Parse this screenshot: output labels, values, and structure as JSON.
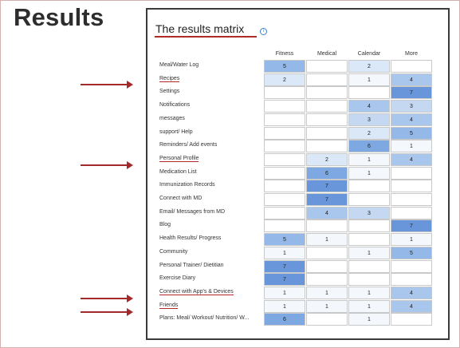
{
  "slide_title": "Results",
  "matrix": {
    "title": "The results matrix",
    "columns": [
      "Fitness",
      "Medical",
      "Calendar",
      "More"
    ],
    "rows": [
      {
        "label": "Meal/Water Log",
        "values": [
          "5",
          "",
          "2",
          ""
        ]
      },
      {
        "label": "Recipes",
        "values": [
          "2",
          "",
          "1",
          "4"
        ]
      },
      {
        "label": "Settings",
        "values": [
          "",
          "",
          "",
          "7"
        ]
      },
      {
        "label": "Notifications",
        "values": [
          "",
          "",
          "4",
          "3"
        ]
      },
      {
        "label": "messages",
        "values": [
          "",
          "",
          "3",
          "4"
        ]
      },
      {
        "label": "support/ Help",
        "values": [
          "",
          "",
          "2",
          "5"
        ]
      },
      {
        "label": "Reminders/ Add events",
        "values": [
          "",
          "",
          "6",
          "1"
        ]
      },
      {
        "label": "Personal Profile",
        "values": [
          "",
          "2",
          "1",
          "4"
        ]
      },
      {
        "label": "Medication List",
        "values": [
          "",
          "6",
          "1",
          ""
        ]
      },
      {
        "label": "Immunization Records",
        "values": [
          "",
          "7",
          "",
          ""
        ]
      },
      {
        "label": "Connect with MD",
        "values": [
          "",
          "7",
          "",
          ""
        ]
      },
      {
        "label": "Email/ Messages from MD",
        "values": [
          "",
          "4",
          "3",
          ""
        ]
      },
      {
        "label": "Blog",
        "values": [
          "",
          "",
          "",
          "7"
        ]
      },
      {
        "label": "Health Results/ Progress",
        "values": [
          "5",
          "1",
          "",
          "1"
        ]
      },
      {
        "label": "Community",
        "values": [
          "1",
          "",
          "1",
          "5"
        ]
      },
      {
        "label": "Personal Trainer/ Dietitian",
        "values": [
          "7",
          "",
          "",
          ""
        ]
      },
      {
        "label": "Exercise Diary",
        "values": [
          "7",
          "",
          "",
          ""
        ]
      },
      {
        "label": "Connect with App's & Devices",
        "values": [
          "1",
          "1",
          "1",
          "4"
        ]
      },
      {
        "label": "Friends",
        "values": [
          "1",
          "1",
          "1",
          "4"
        ]
      },
      {
        "label": "Plans: Meal/ Workout/ Nutrition/ W...",
        "values": [
          "6",
          "",
          "1",
          ""
        ]
      }
    ],
    "highlighted_rows": [
      "Recipes",
      "Personal Profile",
      "Connect with App's & Devices",
      "Friends"
    ],
    "colors": {
      "level_1": "#f4f8fd",
      "level_2": "#dbe8f7",
      "level_3": "#c4d8f1",
      "level_4": "#a9c6ec",
      "level_5": "#94b8e7",
      "level_6": "#7ea8e1",
      "level_7": "#6996da",
      "accent": "#b02a2a"
    }
  }
}
